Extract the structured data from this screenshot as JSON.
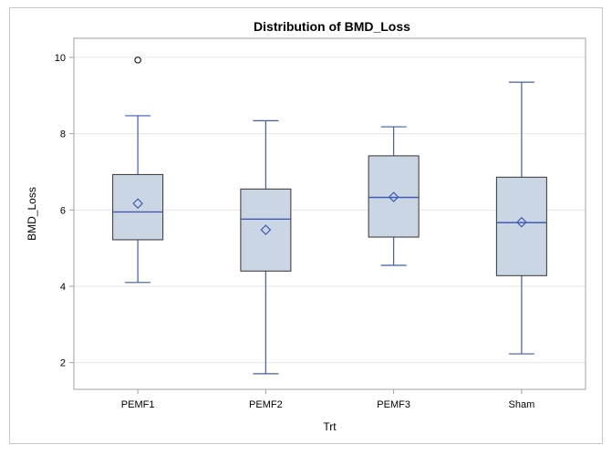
{
  "chart_data": {
    "type": "box",
    "title": "Distribution of BMD_Loss",
    "xlabel": "Trt",
    "ylabel": "BMD_Loss",
    "ylim": [
      1.3,
      10.5
    ],
    "yticks": [
      2,
      4,
      6,
      8,
      10
    ],
    "grid": true,
    "categories": [
      "PEMF1",
      "PEMF2",
      "PEMF3",
      "Sham"
    ],
    "boxes": [
      {
        "min": 4.1,
        "q1": 5.22,
        "median": 5.95,
        "q3": 6.93,
        "max": 8.47,
        "mean": 6.17,
        "outliers": [
          9.93
        ]
      },
      {
        "min": 1.71,
        "q1": 4.4,
        "median": 5.76,
        "q3": 6.55,
        "max": 8.34,
        "mean": 5.48,
        "outliers": []
      },
      {
        "min": 4.55,
        "q1": 5.29,
        "median": 6.33,
        "q3": 7.42,
        "max": 8.18,
        "mean": 6.34,
        "outliers": []
      },
      {
        "min": 2.23,
        "q1": 4.28,
        "median": 5.67,
        "q3": 6.86,
        "max": 9.35,
        "mean": 5.68,
        "outliers": []
      }
    ],
    "colors": {
      "fill": "#cbd6e5",
      "line": "#3f5bb5",
      "box_border": "#333333",
      "grid": "#e6e6e6",
      "axis": "#a0a0a0"
    }
  }
}
